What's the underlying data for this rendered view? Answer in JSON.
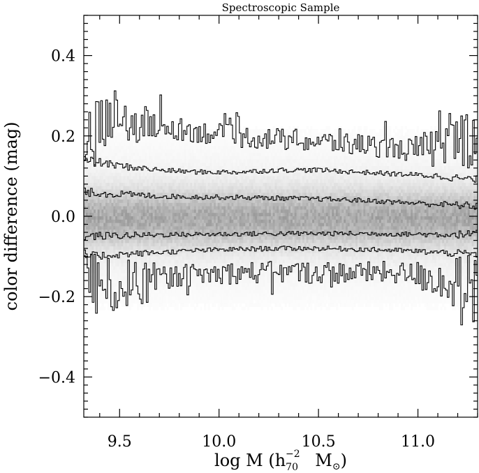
{
  "chart_data": {
    "type": "line",
    "title": "Spectroscopic Sample",
    "xlabel": {
      "main": "log M (h",
      "sub": "70",
      "sup": "−2",
      "unit": "M",
      "sun_symbol": "⊙",
      "close": ")"
    },
    "ylabel": "color difference (mag)",
    "xlim": [
      9.32,
      11.3
    ],
    "ylim": [
      -0.5,
      0.5
    ],
    "xticks": [
      9.5,
      10.0,
      10.5,
      11.0
    ],
    "xtick_labels": [
      "9.5",
      "10.0",
      "10.5",
      "11.0"
    ],
    "yticks": [
      0.4,
      0.2,
      0.0,
      -0.2,
      -0.4
    ],
    "ytick_labels": [
      "0.4",
      "0.2",
      "0.0",
      "−0.2",
      "−0.4"
    ],
    "grid": false,
    "series": [
      {
        "x": [
          9.33,
          9.45,
          9.6,
          9.75,
          9.9,
          10.05,
          10.2,
          10.35,
          10.5,
          10.65,
          10.8,
          10.95,
          11.1,
          11.3
        ],
        "y": [
          0.2,
          0.22,
          0.23,
          0.22,
          0.21,
          0.2,
          0.195,
          0.19,
          0.185,
          0.18,
          0.175,
          0.165,
          0.17,
          0.21
        ]
      },
      {
        "x": [
          9.33,
          9.5,
          9.7,
          9.9,
          10.1,
          10.3,
          10.5,
          10.7,
          10.9,
          11.1,
          11.3
        ],
        "y": [
          0.14,
          0.125,
          0.115,
          0.11,
          0.11,
          0.115,
          0.115,
          0.11,
          0.105,
          0.1,
          0.09
        ]
      },
      {
        "x": [
          9.33,
          9.5,
          9.7,
          9.9,
          10.1,
          10.3,
          10.5,
          10.7,
          10.9,
          11.1,
          11.3
        ],
        "y": [
          0.06,
          0.055,
          0.05,
          0.048,
          0.047,
          0.045,
          0.043,
          0.04,
          0.035,
          0.03,
          0.025
        ]
      },
      {
        "x": [
          9.33,
          9.5,
          9.7,
          9.9,
          10.1,
          10.3,
          10.5,
          10.7,
          10.9,
          11.1,
          11.3
        ],
        "y": [
          -0.05,
          -0.048,
          -0.046,
          -0.045,
          -0.044,
          -0.043,
          -0.043,
          -0.043,
          -0.044,
          -0.045,
          -0.045
        ]
      },
      {
        "x": [
          9.33,
          9.5,
          9.7,
          9.9,
          10.1,
          10.3,
          10.5,
          10.7,
          10.9,
          11.1,
          11.3
        ],
        "y": [
          -0.1,
          -0.095,
          -0.09,
          -0.085,
          -0.082,
          -0.08,
          -0.08,
          -0.082,
          -0.085,
          -0.09,
          -0.095
        ]
      },
      {
        "x": [
          9.33,
          9.45,
          9.6,
          9.75,
          9.9,
          10.1,
          10.3,
          10.5,
          10.7,
          10.9,
          11.05,
          11.2,
          11.3
        ],
        "y": [
          -0.16,
          -0.18,
          -0.16,
          -0.15,
          -0.145,
          -0.14,
          -0.14,
          -0.14,
          -0.14,
          -0.14,
          -0.15,
          -0.17,
          -0.18
        ]
      }
    ],
    "density_background": {
      "type": "heatmap",
      "center_y": -0.005,
      "spread": 0.045,
      "peak_gray": "#8a8a8a"
    }
  }
}
